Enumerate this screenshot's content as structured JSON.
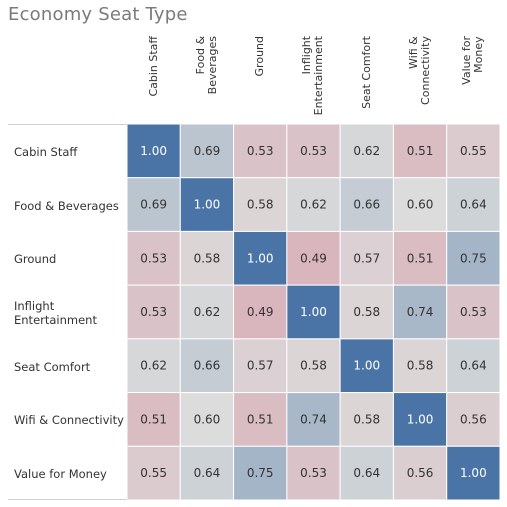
{
  "chart_data": {
    "type": "heatmap",
    "title": "Economy Seat Type",
    "columns": [
      "Cabin Staff",
      "Food &\nBeverages",
      "Ground",
      "Inflight\nEntertainment",
      "Seat Comfort",
      "Wifi &\nConnectivity",
      "Value for\nMoney"
    ],
    "rows": [
      "Cabin Staff",
      "Food & Beverages",
      "Ground",
      "Inflight\nEntertainment",
      "Seat Comfort",
      "Wifi & Connectivity",
      "Value for Money"
    ],
    "values": [
      [
        1.0,
        0.69,
        0.53,
        0.53,
        0.62,
        0.51,
        0.55
      ],
      [
        0.69,
        1.0,
        0.58,
        0.62,
        0.66,
        0.6,
        0.64
      ],
      [
        0.53,
        0.58,
        1.0,
        0.49,
        0.57,
        0.51,
        0.75
      ],
      [
        0.53,
        0.62,
        0.49,
        1.0,
        0.58,
        0.74,
        0.53
      ],
      [
        0.62,
        0.66,
        0.57,
        0.58,
        1.0,
        0.58,
        0.64
      ],
      [
        0.51,
        0.6,
        0.51,
        0.74,
        0.58,
        1.0,
        0.56
      ],
      [
        0.55,
        0.64,
        0.75,
        0.53,
        0.64,
        0.56,
        1.0
      ]
    ],
    "colors": {
      "low": "#d9b5bd",
      "mid": "#dcdcdc",
      "high": "#4a74a6",
      "grid": "#ffffff"
    }
  }
}
